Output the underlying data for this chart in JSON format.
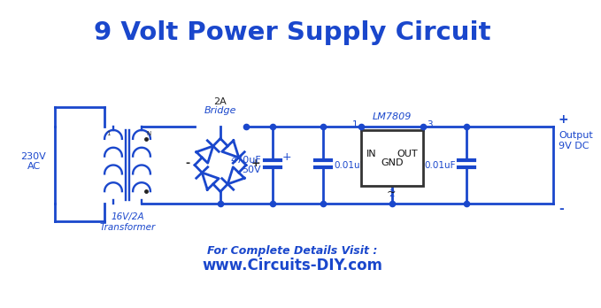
{
  "title": "9 Volt Power Supply Circuit",
  "title_color": "#1a47cc",
  "title_fontsize": 21,
  "circuit_color": "#1a47cc",
  "line_width": 2.0,
  "bg_color": "#ffffff",
  "footer_line1": "For Complete Details Visit :",
  "footer_line2": "www.Circuits-DIY.com",
  "footer_color": "#1a47cc",
  "label_230V": "230V\nAC",
  "label_transformer": "16V/2A\nTransformer",
  "label_bridge_rating": "2A",
  "label_bridge": "Bridge",
  "label_cap1": "470uF\n50V",
  "label_cap2": "0.01uF",
  "label_cap3": "0.01uF",
  "label_lm7809": "LM7809",
  "label_in": "IN",
  "label_out": "OUT",
  "label_gnd": "GND",
  "label_pin1": "1",
  "label_pin3": "3",
  "label_pin2": "2",
  "label_output_plus": "+",
  "label_output_minus": "-",
  "label_output": "Output\n9V DC"
}
